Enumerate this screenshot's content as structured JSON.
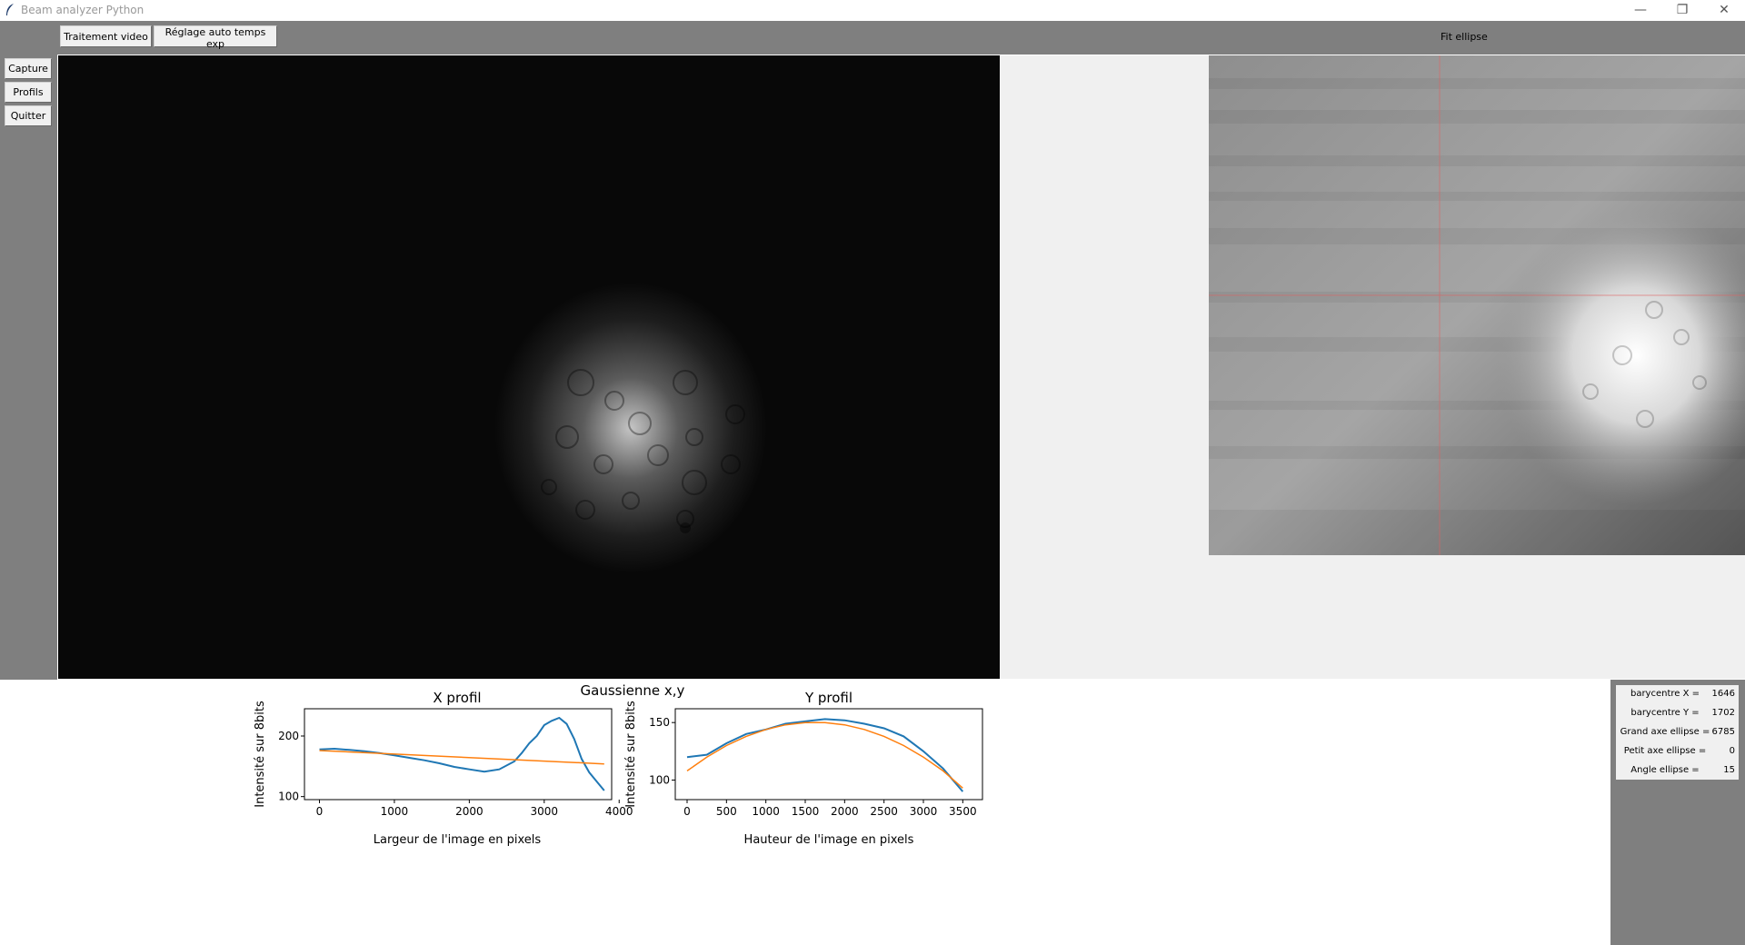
{
  "window": {
    "title": "Beam analyzer Python",
    "minimize": "—",
    "maximize": "❐",
    "close": "✕"
  },
  "toolbar": {
    "video_label": "Traitement video",
    "auto_exposure_label": "Réglage auto temps exp",
    "fit_label": "Fit ellipse"
  },
  "sidebar": {
    "capture_label": "Capture",
    "profils_label": "Profils",
    "quitter_label": "Quitter"
  },
  "figure": {
    "suptitle": "Gaussienne x,y"
  },
  "chart_data": [
    {
      "type": "line",
      "title": "X profil",
      "xlabel": "Largeur de l'image en pixels",
      "ylabel": "Intensité sur 8bits",
      "xlim": [
        -200,
        3900
      ],
      "ylim": [
        95,
        245
      ],
      "xticks": [
        0,
        1000,
        2000,
        3000,
        4000
      ],
      "yticks": [
        100,
        200
      ],
      "series": [
        {
          "color": "#1f77b4",
          "x": [
            0,
            200,
            400,
            600,
            800,
            1000,
            1200,
            1400,
            1600,
            1800,
            2000,
            2200,
            2400,
            2600,
            2700,
            2800,
            2900,
            3000,
            3100,
            3200,
            3300,
            3400,
            3500,
            3600,
            3700,
            3800
          ],
          "y": [
            178,
            179,
            177,
            175,
            172,
            168,
            164,
            160,
            155,
            149,
            145,
            141,
            145,
            158,
            172,
            188,
            200,
            218,
            225,
            230,
            220,
            195,
            162,
            140,
            125,
            110
          ]
        },
        {
          "color": "#ff7f0e",
          "x": [
            0,
            3800
          ],
          "y": [
            176,
            154
          ]
        }
      ]
    },
    {
      "type": "line",
      "title": "Y profil",
      "xlabel": "Hauteur de l'image en pixels",
      "ylabel": "Intensité sur 8bits",
      "xlim": [
        -150,
        3750
      ],
      "ylim": [
        83,
        162
      ],
      "xticks": [
        0,
        500,
        1000,
        1500,
        2000,
        2500,
        3000,
        3500
      ],
      "yticks": [
        100,
        150
      ],
      "series": [
        {
          "color": "#1f77b4",
          "x": [
            0,
            250,
            500,
            750,
            1000,
            1250,
            1500,
            1750,
            2000,
            2250,
            2500,
            2750,
            3000,
            3250,
            3500
          ],
          "y": [
            120,
            122,
            132,
            140,
            144,
            149,
            151,
            153,
            152,
            149,
            145,
            138,
            125,
            110,
            90
          ]
        },
        {
          "color": "#ff7f0e",
          "x": [
            0,
            250,
            500,
            750,
            1000,
            1250,
            1500,
            1750,
            2000,
            2250,
            2500,
            2750,
            3000,
            3250,
            3500
          ],
          "y": [
            108,
            120,
            130,
            138,
            144,
            148,
            150,
            150,
            148,
            144,
            138,
            130,
            120,
            108,
            93
          ]
        }
      ]
    }
  ],
  "results": {
    "rows": [
      {
        "label": "barycentre X =",
        "value": "1646"
      },
      {
        "label": "barycentre Y =",
        "value": "1702"
      },
      {
        "label": "Grand axe ellipse =",
        "value": "6785"
      },
      {
        "label": "Petit axe ellipse =",
        "value": "0"
      },
      {
        "label": "Angle ellipse =",
        "value": "15"
      }
    ]
  }
}
